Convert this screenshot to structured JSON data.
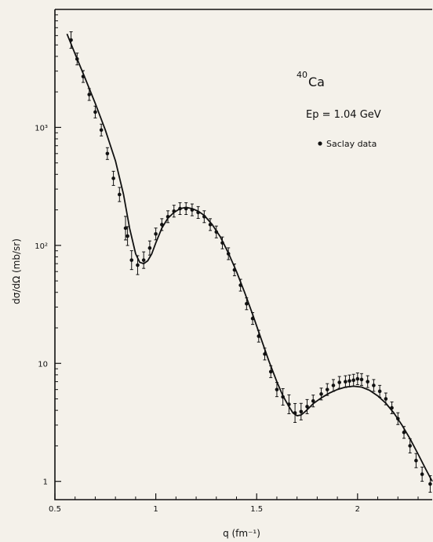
{
  "chart_data": {
    "type": "scatter",
    "title": "",
    "xlabel": "q (fm⁻¹)",
    "ylabel": "dσ/dΩ (mb/sr)",
    "xlim": [
      0.5,
      2.37
    ],
    "ylim": [
      0.7,
      10000
    ],
    "y_scale": "log",
    "x_ticks": [
      {
        "value": 0.5,
        "label": "0.5"
      },
      {
        "value": 1.0,
        "label": "1"
      },
      {
        "value": 1.5,
        "label": "1.5"
      },
      {
        "value": 2.0,
        "label": "2"
      }
    ],
    "y_ticks": [
      {
        "value": 1,
        "label": "1"
      },
      {
        "value": 10,
        "label": "10"
      },
      {
        "value": 100,
        "label": "10²"
      },
      {
        "value": 1000,
        "label": "10³"
      }
    ],
    "annotations": {
      "nucleus_mass": "40",
      "nucleus_symbol": "Ca",
      "energy_label": "Ep = 1.04 GeV",
      "legend_label": "Saclay data"
    },
    "series": [
      {
        "name": "Saclay data",
        "kind": "points",
        "x": [
          0.58,
          0.61,
          0.64,
          0.67,
          0.7,
          0.73,
          0.76,
          0.79,
          0.82,
          0.85,
          0.86,
          0.88,
          0.91,
          0.94,
          0.97,
          1.0,
          1.03,
          1.06,
          1.09,
          1.12,
          1.15,
          1.18,
          1.21,
          1.24,
          1.27,
          1.3,
          1.33,
          1.36,
          1.39,
          1.42,
          1.45,
          1.48,
          1.51,
          1.54,
          1.57,
          1.6,
          1.63,
          1.66,
          1.69,
          1.72,
          1.75,
          1.78,
          1.82,
          1.85,
          1.88,
          1.91,
          1.94,
          1.96,
          1.98,
          2.0,
          2.02,
          2.05,
          2.08,
          2.11,
          2.14,
          2.17,
          2.2,
          2.23,
          2.26,
          2.29,
          2.32,
          2.36
        ],
        "y": [
          5500,
          3800,
          2700,
          1900,
          1350,
          950,
          600,
          370,
          270,
          140,
          120,
          75,
          68,
          75,
          95,
          125,
          150,
          175,
          195,
          205,
          205,
          200,
          190,
          175,
          150,
          130,
          105,
          85,
          62,
          46,
          32,
          24,
          17,
          12,
          8.5,
          6,
          5.2,
          4.5,
          3.8,
          3.9,
          4.3,
          4.8,
          5.5,
          6,
          6.5,
          6.9,
          7.0,
          7.1,
          7.2,
          7.4,
          7.3,
          7.0,
          6.5,
          5.8,
          5.0,
          4.2,
          3.4,
          2.6,
          2.0,
          1.5,
          1.15,
          0.95
        ],
        "yerr": [
          0.07,
          0.05,
          0.05,
          0.05,
          0.05,
          0.05,
          0.05,
          0.06,
          0.06,
          0.1,
          0.08,
          0.08,
          0.08,
          0.07,
          0.06,
          0.05,
          0.05,
          0.05,
          0.05,
          0.05,
          0.05,
          0.05,
          0.05,
          0.05,
          0.05,
          0.05,
          0.05,
          0.05,
          0.05,
          0.05,
          0.05,
          0.05,
          0.05,
          0.05,
          0.05,
          0.06,
          0.07,
          0.08,
          0.08,
          0.07,
          0.06,
          0.05,
          0.05,
          0.05,
          0.05,
          0.05,
          0.05,
          0.05,
          0.05,
          0.05,
          0.05,
          0.05,
          0.05,
          0.05,
          0.05,
          0.05,
          0.05,
          0.05,
          0.06,
          0.06,
          0.06,
          0.07
        ]
      },
      {
        "name": "",
        "kind": "curve",
        "x": [
          0.56,
          0.6,
          0.65,
          0.7,
          0.75,
          0.8,
          0.84,
          0.87,
          0.9,
          0.92,
          0.94,
          0.96,
          0.98,
          1.0,
          1.03,
          1.06,
          1.09,
          1.12,
          1.15,
          1.18,
          1.21,
          1.24,
          1.28,
          1.32,
          1.36,
          1.4,
          1.44,
          1.48,
          1.52,
          1.56,
          1.6,
          1.63,
          1.66,
          1.68,
          1.7,
          1.72,
          1.74,
          1.76,
          1.78,
          1.82,
          1.86,
          1.9,
          1.94,
          1.98,
          2.02,
          2.06,
          2.1,
          2.14,
          2.18,
          2.22,
          2.26,
          2.3,
          2.34,
          2.37
        ],
        "y": [
          6200,
          4200,
          2600,
          1600,
          950,
          520,
          270,
          140,
          85,
          72,
          70,
          74,
          85,
          105,
          140,
          170,
          190,
          205,
          210,
          205,
          195,
          180,
          150,
          118,
          86,
          60,
          40,
          26,
          16.5,
          10.5,
          7.0,
          5.3,
          4.3,
          3.8,
          3.6,
          3.65,
          3.9,
          4.2,
          4.55,
          5.1,
          5.6,
          6.0,
          6.3,
          6.4,
          6.3,
          5.9,
          5.3,
          4.6,
          3.8,
          3.0,
          2.3,
          1.7,
          1.25,
          1.0
        ]
      }
    ]
  }
}
